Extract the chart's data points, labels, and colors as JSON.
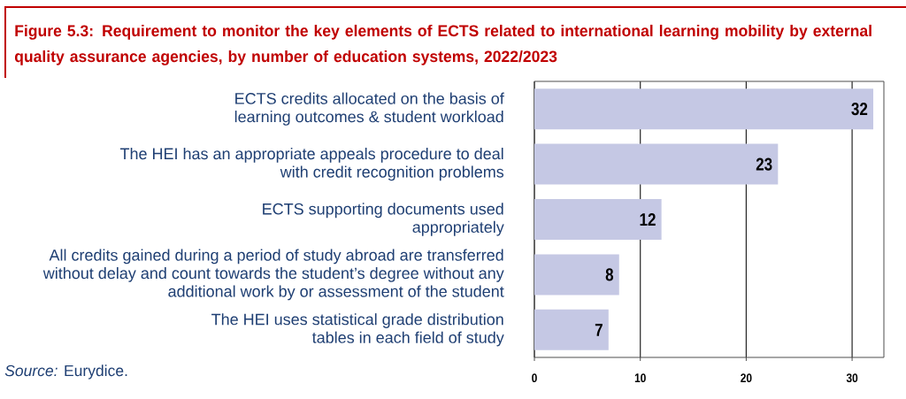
{
  "chart_data": {
    "type": "bar",
    "orientation": "horizontal",
    "title": "Figure 5.3: Requirement to monitor the key elements of ECTS related to international learning mobility by external quality assurance agencies, by number of education systems, 2022/2023",
    "categories": [
      "ECTS credits allocated on the basis of learning outcomes & student workload",
      "The HEI has an appropriate appeals procedure to deal with credit recognition problems",
      "ECTS supporting documents used appropriately",
      "All credits gained during a period of study abroad are transferred without delay and count towards the student’s degree without any additional work by or assessment of the student",
      "The HEI uses statistical grade distribution tables in each field of study"
    ],
    "values": [
      32,
      23,
      12,
      8,
      7
    ],
    "color": "#c5c8e4",
    "xlim": [
      0,
      33
    ],
    "xticks": [
      0,
      10,
      20,
      30
    ],
    "grid": "x",
    "data_labels": true,
    "annotations": [
      "*Source:* Eurydice."
    ]
  }
}
